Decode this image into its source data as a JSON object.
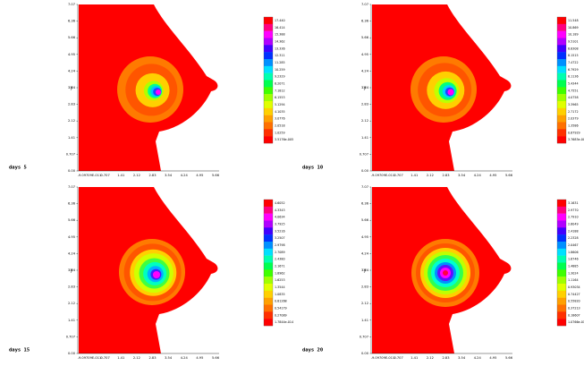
{
  "y_label": "y",
  "y_ticks": [
    "7.07",
    "6.36",
    "5.66",
    "4.95",
    "4.24",
    "3.54",
    "2.83",
    "2.12",
    "1.41",
    "0.707",
    "0.00"
  ],
  "x_ticks": [
    "-9.09709E-011",
    "0.707",
    "1.41",
    "2.12",
    "2.83",
    "3.54",
    "4.24",
    "4.95",
    "5.66"
  ],
  "panels": [
    {
      "label": "days 5",
      "colorbar": [
        "17.440",
        "16.414",
        "15.388",
        "14.362",
        "13.336",
        "12.311",
        "11.285",
        "10.259",
        "9.2329",
        "8.2071",
        "7.1812",
        "6.1553",
        "5.1294",
        "4.1035",
        "3.0776",
        "2.0518",
        "1.0259",
        "3.5176e-005"
      ]
    },
    {
      "label": "days 10",
      "colorbar": [
        "11.548",
        "10.869",
        "10.189",
        "9.5101",
        "8.8308",
        "8.1515",
        "7.4722",
        "6.7929",
        "6.1136",
        "5.4344",
        "4.7551",
        "4.0758",
        "3.3965",
        "2.7172",
        "2.0379",
        "1.3586",
        "0.67929",
        "3.7683e-005"
      ]
    },
    {
      "label": "days 15",
      "colorbar": [
        "4.6052",
        "4.3343",
        "4.0634",
        "3.7925",
        "3.5216",
        "3.2507",
        "2.9798",
        "2.7089",
        "2.4380",
        "2.1671",
        "1.8962",
        "1.6253",
        "1.3544",
        "1.0835",
        "0.81268",
        "0.54179",
        "0.27089",
        "1.7844e-014"
      ]
    },
    {
      "label": "days 20",
      "colorbar": [
        "3.1631",
        "2.9770",
        "2.7910",
        "2.6049",
        "2.4188",
        "2.2328",
        "2.0467",
        "1.8606",
        "1.6746",
        "1.4885",
        "1.3024",
        "1.1164",
        "0.93034",
        "0.74427",
        "0.55820",
        "0.37213",
        "0.18607",
        "1.0766e-014"
      ]
    }
  ]
}
